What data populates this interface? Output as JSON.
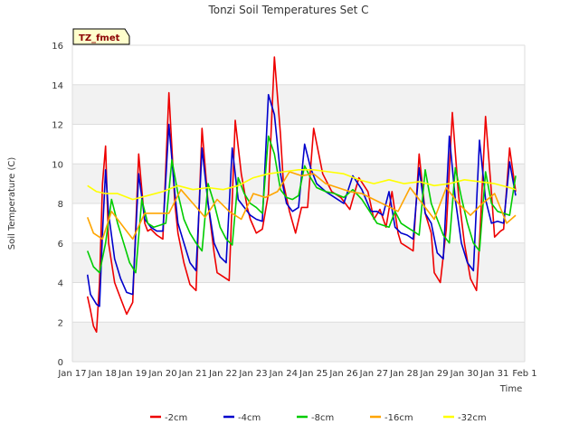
{
  "chart_data": {
    "type": "line",
    "title": "Tonzi Soil Temperatures Set C",
    "xlabel": "Time",
    "ylabel": "Soil Temperature (C)",
    "ylim": [
      0,
      16
    ],
    "yticks": [
      0,
      2,
      4,
      6,
      8,
      10,
      12,
      14,
      16
    ],
    "xlim": [
      0,
      15
    ],
    "xtick_labels": [
      "Jan 17",
      "Jan 18",
      "Jan 19",
      "Jan 20",
      "Jan 21",
      "Jan 22",
      "Jan 23",
      "Jan 24",
      "Jan 25",
      "Jan 26",
      "Jan 27",
      "Jan 28",
      "Jan 29",
      "Jan 30",
      "Jan 31",
      "Feb 1"
    ],
    "badge": "TZ_fmet",
    "grid": true,
    "legend_position": "bottom",
    "series": [
      {
        "name": "-2cm",
        "color": "#ee0000",
        "x": [
          0.5,
          0.6,
          0.7,
          0.8,
          0.9,
          1.0,
          1.1,
          1.2,
          1.4,
          1.6,
          1.8,
          2.0,
          2.2,
          2.4,
          2.5,
          2.6,
          2.8,
          3.0,
          3.2,
          3.4,
          3.5,
          3.7,
          3.9,
          4.1,
          4.3,
          4.5,
          4.7,
          4.8,
          5.0,
          5.2,
          5.4,
          5.6,
          5.8,
          5.9,
          6.1,
          6.3,
          6.5,
          6.7,
          6.9,
          7.0,
          7.2,
          7.4,
          7.6,
          7.8,
          8.0,
          8.3,
          8.6,
          8.9,
          9.2,
          9.5,
          9.8,
          10.0,
          10.2,
          10.4,
          10.6,
          10.8,
          10.9,
          11.1,
          11.3,
          11.5,
          11.7,
          11.9,
          12.0,
          12.2,
          12.4,
          12.6,
          12.8,
          13.0,
          13.2,
          13.4,
          13.5,
          13.7,
          13.9,
          14.0,
          14.2,
          14.3,
          14.5,
          14.7
        ],
        "y": [
          3.3,
          2.6,
          1.8,
          1.5,
          4.0,
          9.0,
          10.9,
          6.0,
          4.0,
          3.2,
          2.4,
          3.0,
          10.5,
          7.0,
          6.6,
          6.7,
          6.4,
          6.2,
          13.6,
          8.0,
          6.5,
          5.0,
          3.9,
          3.6,
          11.8,
          8.0,
          5.5,
          4.5,
          4.3,
          4.1,
          12.2,
          9.5,
          7.8,
          7.2,
          6.5,
          6.7,
          8.5,
          15.4,
          11.5,
          9.0,
          7.6,
          6.5,
          7.8,
          7.8,
          11.8,
          9.5,
          8.6,
          8.3,
          7.7,
          9.3,
          8.6,
          7.2,
          7.7,
          6.8,
          8.6,
          6.5,
          6.0,
          5.8,
          5.6,
          10.5,
          7.5,
          6.5,
          4.5,
          4.0,
          6.7,
          12.6,
          8.5,
          6.0,
          4.2,
          3.6,
          6.0,
          12.4,
          8.5,
          6.3,
          6.6,
          6.7,
          10.8,
          8.6
        ]
      },
      {
        "name": "-4cm",
        "color": "#0000cc",
        "x": [
          0.5,
          0.6,
          0.8,
          0.9,
          1.0,
          1.1,
          1.2,
          1.4,
          1.6,
          1.8,
          2.0,
          2.2,
          2.4,
          2.6,
          2.8,
          3.0,
          3.2,
          3.4,
          3.5,
          3.7,
          3.9,
          4.1,
          4.3,
          4.5,
          4.7,
          4.9,
          5.1,
          5.3,
          5.5,
          5.7,
          5.9,
          6.1,
          6.3,
          6.5,
          6.7,
          6.9,
          7.1,
          7.3,
          7.5,
          7.7,
          7.9,
          8.1,
          8.4,
          8.7,
          9.0,
          9.3,
          9.6,
          9.9,
          10.1,
          10.3,
          10.5,
          10.7,
          10.9,
          11.1,
          11.3,
          11.5,
          11.7,
          11.9,
          12.1,
          12.3,
          12.5,
          12.7,
          12.9,
          13.1,
          13.3,
          13.5,
          13.7,
          13.9,
          14.1,
          14.3,
          14.5,
          14.7
        ],
        "y": [
          4.4,
          3.4,
          2.9,
          2.8,
          6.5,
          9.7,
          7.5,
          5.2,
          4.2,
          3.5,
          3.4,
          9.5,
          7.2,
          6.8,
          6.6,
          6.6,
          12.0,
          8.5,
          7.0,
          6.0,
          5.0,
          4.6,
          10.8,
          8.0,
          6.0,
          5.3,
          5.0,
          10.8,
          8.2,
          7.8,
          7.4,
          7.2,
          7.1,
          13.5,
          12.5,
          9.5,
          8.0,
          7.6,
          7.8,
          11.0,
          9.8,
          9.0,
          8.6,
          8.3,
          8.0,
          9.4,
          8.7,
          7.6,
          7.6,
          7.4,
          8.6,
          6.8,
          6.5,
          6.4,
          6.2,
          9.8,
          7.5,
          7.0,
          5.5,
          5.2,
          11.4,
          8.2,
          6.0,
          5.0,
          4.6,
          11.2,
          8.2,
          7.0,
          7.1,
          7.0,
          10.1,
          8.4
        ]
      },
      {
        "name": "-8cm",
        "color": "#00cc00",
        "x": [
          0.5,
          0.7,
          0.9,
          1.1,
          1.3,
          1.5,
          1.7,
          1.9,
          2.1,
          2.3,
          2.5,
          2.7,
          2.9,
          3.1,
          3.3,
          3.5,
          3.7,
          3.9,
          4.1,
          4.3,
          4.5,
          4.7,
          4.9,
          5.1,
          5.3,
          5.5,
          5.7,
          5.9,
          6.1,
          6.3,
          6.5,
          6.7,
          6.9,
          7.1,
          7.3,
          7.5,
          7.7,
          7.9,
          8.1,
          8.4,
          8.7,
          9.0,
          9.3,
          9.6,
          9.9,
          10.1,
          10.3,
          10.5,
          10.7,
          10.9,
          11.1,
          11.3,
          11.5,
          11.7,
          11.9,
          12.1,
          12.3,
          12.5,
          12.7,
          12.9,
          13.1,
          13.3,
          13.5,
          13.7,
          13.9,
          14.1,
          14.3,
          14.5,
          14.7
        ],
        "y": [
          5.6,
          4.8,
          4.5,
          6.0,
          8.2,
          7.0,
          6.0,
          5.0,
          4.5,
          8.2,
          7.0,
          6.8,
          6.9,
          7.0,
          10.2,
          8.5,
          7.2,
          6.5,
          6.0,
          5.6,
          9.0,
          8.0,
          6.8,
          6.2,
          5.9,
          9.3,
          8.5,
          8.0,
          7.8,
          7.5,
          11.4,
          10.5,
          8.7,
          8.3,
          8.2,
          8.4,
          9.9,
          9.3,
          8.8,
          8.6,
          8.5,
          8.3,
          8.7,
          8.2,
          7.5,
          7.0,
          6.9,
          6.8,
          7.6,
          7.0,
          6.8,
          6.6,
          6.4,
          9.7,
          8.0,
          7.2,
          6.4,
          6.0,
          9.8,
          8.3,
          7.0,
          6.0,
          5.6,
          9.6,
          8.0,
          7.6,
          7.5,
          7.4,
          9.4
        ]
      },
      {
        "name": "-16cm",
        "color": "#ffa500",
        "x": [
          0.5,
          0.7,
          1.0,
          1.3,
          1.6,
          2.0,
          2.4,
          2.8,
          3.2,
          3.6,
          4.0,
          4.4,
          4.8,
          5.2,
          5.6,
          6.0,
          6.4,
          6.8,
          7.2,
          7.6,
          8.0,
          8.4,
          8.8,
          9.2,
          9.6,
          10.0,
          10.4,
          10.8,
          11.2,
          11.6,
          12.0,
          12.4,
          12.8,
          13.2,
          13.6,
          14.0,
          14.4,
          14.7
        ],
        "y": [
          7.3,
          6.5,
          6.2,
          7.6,
          7.0,
          6.2,
          7.5,
          7.5,
          7.5,
          8.7,
          8.0,
          7.3,
          8.2,
          7.6,
          7.2,
          8.5,
          8.3,
          8.6,
          9.6,
          9.4,
          9.5,
          9.0,
          8.8,
          8.6,
          8.5,
          8.2,
          7.9,
          7.6,
          8.8,
          8.0,
          7.2,
          8.8,
          8.0,
          7.4,
          8.0,
          8.5,
          7.0,
          7.4
        ]
      },
      {
        "name": "-32cm",
        "color": "#ffff00",
        "x": [
          0.5,
          0.8,
          1.1,
          1.5,
          2.0,
          2.5,
          3.0,
          3.5,
          4.0,
          4.5,
          5.0,
          5.5,
          6.0,
          6.5,
          7.0,
          7.5,
          8.0,
          8.5,
          9.0,
          9.5,
          10.0,
          10.5,
          11.0,
          11.5,
          12.0,
          12.5,
          13.0,
          13.5,
          14.0,
          14.5,
          14.7
        ],
        "y": [
          8.9,
          8.6,
          8.5,
          8.5,
          8.2,
          8.4,
          8.6,
          8.9,
          8.7,
          8.8,
          8.7,
          8.9,
          9.3,
          9.5,
          9.6,
          9.7,
          9.7,
          9.6,
          9.5,
          9.2,
          9.0,
          9.2,
          9.0,
          9.1,
          8.9,
          9.0,
          9.2,
          9.1,
          9.0,
          8.8,
          8.7
        ]
      }
    ]
  }
}
